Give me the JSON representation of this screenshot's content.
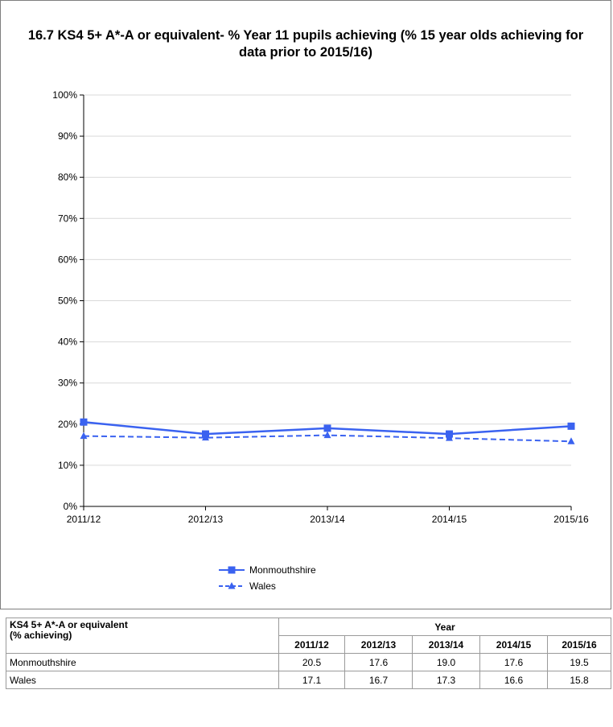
{
  "chart_data": {
    "type": "line",
    "title": "16.7  KS4 5+ A*-A or equivalent- % Year 11 pupils achieving (% 15 year olds achieving for data prior to 2015/16)",
    "categories": [
      "2011/12",
      "2012/13",
      "2013/14",
      "2014/15",
      "2015/16"
    ],
    "ylim": [
      0,
      100
    ],
    "yticks": [
      "0%",
      "10%",
      "20%",
      "30%",
      "40%",
      "50%",
      "60%",
      "70%",
      "80%",
      "90%",
      "100%"
    ],
    "grid": true,
    "legend_position": "bottom",
    "series": [
      {
        "name": "Monmouthshire",
        "values": [
          20.5,
          17.6,
          19.0,
          17.6,
          19.5
        ],
        "color": "#3a62f0",
        "marker": "square",
        "dash": "solid"
      },
      {
        "name": "Wales",
        "values": [
          17.1,
          16.7,
          17.3,
          16.6,
          15.8
        ],
        "color": "#3a62f0",
        "marker": "triangle",
        "dash": "dashed"
      }
    ]
  },
  "table": {
    "metric_label": "KS4 5+ A*-A or equivalent\n(% achieving)",
    "year_header": "Year",
    "years": [
      "2011/12",
      "2012/13",
      "2013/14",
      "2014/15",
      "2015/16"
    ],
    "rows": [
      {
        "label": "Monmouthshire",
        "values": [
          "20.5",
          "17.6",
          "19.0",
          "17.6",
          "19.5"
        ]
      },
      {
        "label": "Wales",
        "values": [
          "17.1",
          "16.7",
          "17.3",
          "16.6",
          "15.8"
        ]
      }
    ]
  }
}
